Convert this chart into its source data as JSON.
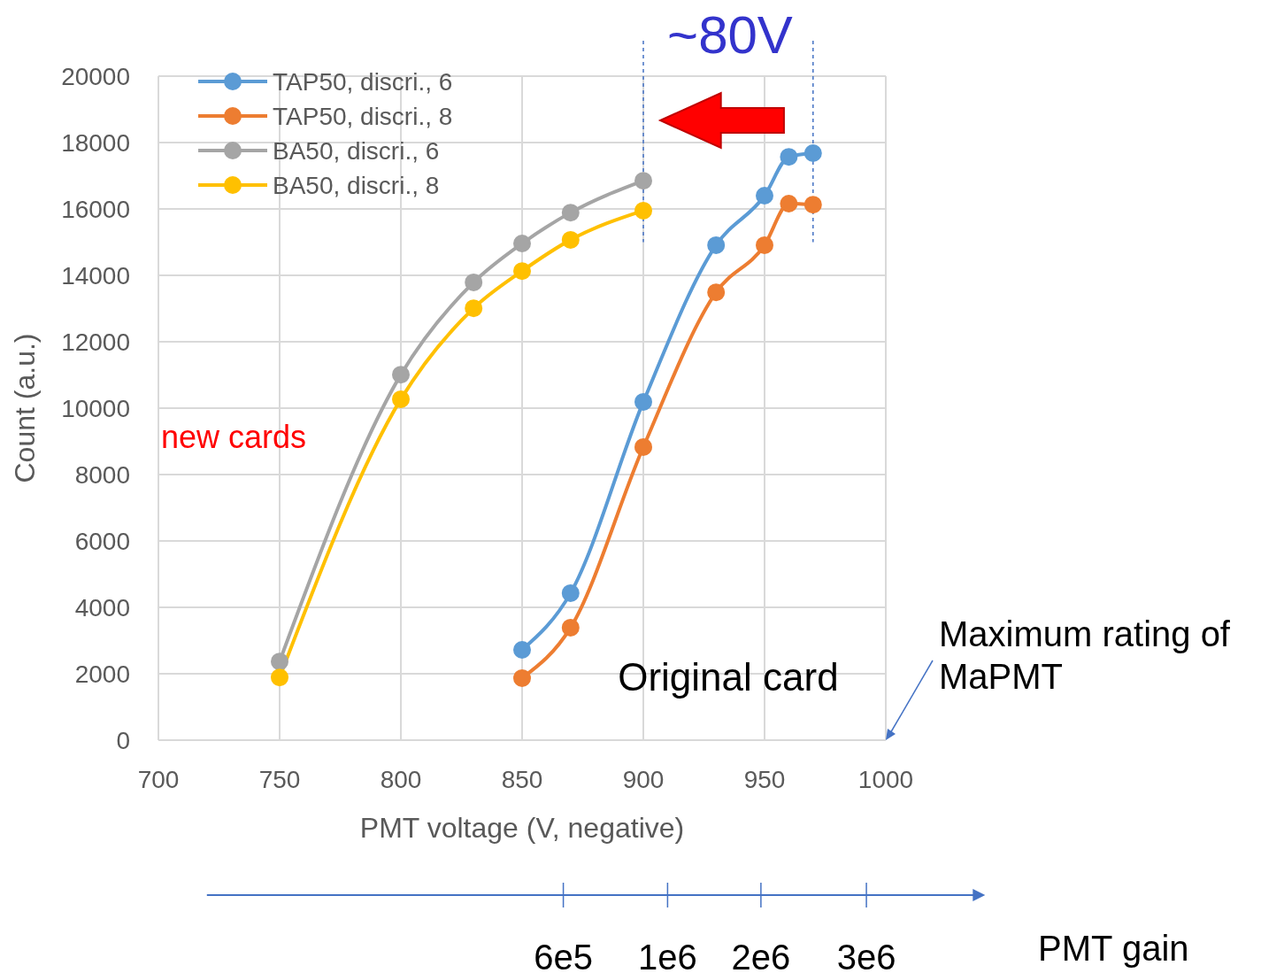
{
  "chart_data": {
    "type": "line",
    "xlabel": "PMT voltage (V, negative)",
    "ylabel": "Count (a.u.)",
    "xlim": [
      700,
      1000
    ],
    "xticks": [
      700,
      750,
      800,
      850,
      900,
      950,
      1000
    ],
    "ylim": [
      0,
      20000
    ],
    "yticks": [
      0,
      2000,
      4000,
      6000,
      8000,
      10000,
      12000,
      14000,
      16000,
      18000,
      20000
    ],
    "grid": true,
    "legend": "top left",
    "marker": "circle",
    "line_style": "solid",
    "series": [
      {
        "name": "TAP50, discri.,  6",
        "color": "#5b9bd5",
        "x": [
          850,
          870,
          900,
          930,
          950,
          960,
          970
        ],
        "values": [
          2720,
          4430,
          10190,
          14910,
          16400,
          17570,
          17680
        ]
      },
      {
        "name": "TAP50, discri.,  8",
        "color": "#ed7d31",
        "x": [
          850,
          870,
          900,
          930,
          950,
          960,
          970
        ],
        "values": [
          1870,
          3390,
          8830,
          13490,
          14910,
          16160,
          16130
        ]
      },
      {
        "name": "BA50,  discri., 6",
        "color": "#a5a5a5",
        "x": [
          750,
          800,
          830,
          850,
          870,
          900
        ],
        "values": [
          2370,
          11010,
          13790,
          14960,
          15890,
          16850
        ]
      },
      {
        "name": "BA50,  discri., 8",
        "color": "#ffc000",
        "x": [
          750,
          800,
          830,
          850,
          870,
          900
        ],
        "values": [
          1890,
          10270,
          13010,
          14130,
          15070,
          15950
        ]
      }
    ],
    "ref_lines": [
      {
        "axis": "x",
        "value": 900,
        "color": "#4472c4",
        "line_style": "dashed"
      },
      {
        "axis": "x",
        "value": 970,
        "color": "#4472c4",
        "line_style": "dashed"
      }
    ],
    "annotations": [
      "~80V",
      "new cards",
      "Original card",
      "Maximum rating of MaPMT",
      "PMT gain",
      "6e5",
      "1e6",
      "2e6",
      "3e6"
    ]
  }
}
